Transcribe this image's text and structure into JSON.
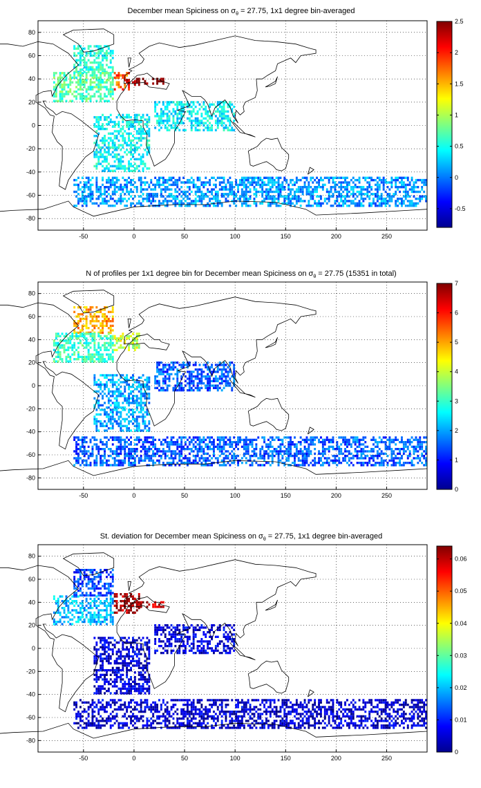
{
  "chart_data": [
    {
      "type": "heatmap",
      "title_pre": "December mean Spiciness on ",
      "title_sym": "σ",
      "title_sub": "θ",
      "title_post": " = 27.75, 1x1 degree bin-averaged",
      "xticks": [
        "-50",
        "0",
        "50",
        "100",
        "150",
        "200",
        "250"
      ],
      "yticks": [
        "80",
        "60",
        "40",
        "20",
        "0",
        "-20",
        "-40",
        "-60",
        "-80"
      ],
      "xlim": [
        -95,
        290
      ],
      "ylim": [
        -90,
        90
      ],
      "grid": true,
      "colormap": "jet",
      "clim": [
        -0.8,
        2.5
      ],
      "cbticks": [
        "2.5",
        "2",
        "1.5",
        "1",
        "0.5",
        "0",
        "-0.5"
      ],
      "cbtick_values": [
        2.5,
        2,
        1.5,
        1,
        0.5,
        0,
        -0.5
      ],
      "regions": [
        {
          "lon": [
            -60,
            -20
          ],
          "lat": [
            45,
            68
          ],
          "value": 0.55
        },
        {
          "lon": [
            -80,
            -20
          ],
          "lat": [
            20,
            45
          ],
          "value": 0.7
        },
        {
          "lon": [
            -20,
            -5
          ],
          "lat": [
            30,
            45
          ],
          "value": 1.8
        },
        {
          "lon": [
            -10,
            5
          ],
          "lat": [
            34,
            40
          ],
          "value": 2.3
        },
        {
          "lon": [
            0,
            30
          ],
          "lat": [
            35,
            40
          ],
          "value": 2.5
        },
        {
          "lon": [
            -40,
            15
          ],
          "lat": [
            -40,
            10
          ],
          "value": 0.45
        },
        {
          "lon": [
            20,
            100
          ],
          "lat": [
            -5,
            20
          ],
          "value": 0.4
        },
        {
          "lon": [
            -60,
            290
          ],
          "lat": [
            -70,
            -45
          ],
          "value": 0.1
        }
      ]
    },
    {
      "type": "heatmap",
      "title_pre": "N of profiles per 1x1 degree bin for December mean Spiciness on ",
      "title_sym": "σ",
      "title_sub": "θ",
      "title_post": " = 27.75 (15351 in total)",
      "xticks": [
        "-50",
        "0",
        "50",
        "100",
        "150",
        "200",
        "250"
      ],
      "yticks": [
        "80",
        "60",
        "40",
        "20",
        "0",
        "-20",
        "-40",
        "-60",
        "-80"
      ],
      "xlim": [
        -95,
        290
      ],
      "ylim": [
        -90,
        90
      ],
      "grid": true,
      "colormap": "jet",
      "clim": [
        0,
        7
      ],
      "cbticks": [
        "7",
        "6",
        "5",
        "4",
        "3",
        "2",
        "1",
        "0"
      ],
      "cbtick_values": [
        7,
        6,
        5,
        4,
        3,
        2,
        1,
        0
      ],
      "regions": [
        {
          "lon": [
            -60,
            -20
          ],
          "lat": [
            45,
            68
          ],
          "value": 5
        },
        {
          "lon": [
            -80,
            -20
          ],
          "lat": [
            20,
            45
          ],
          "value": 3
        },
        {
          "lon": [
            -20,
            5
          ],
          "lat": [
            30,
            45
          ],
          "value": 4
        },
        {
          "lon": [
            -40,
            15
          ],
          "lat": [
            -40,
            10
          ],
          "value": 2
        },
        {
          "lon": [
            20,
            100
          ],
          "lat": [
            -5,
            20
          ],
          "value": 1.5
        },
        {
          "lon": [
            -60,
            290
          ],
          "lat": [
            -70,
            -45
          ],
          "value": 1.5
        }
      ]
    },
    {
      "type": "heatmap",
      "title_pre": "St. deviation for December mean Spiciness on ",
      "title_sym": "σ",
      "title_sub": "θ",
      "title_post": " = 27.75, 1x1 degree bin-averaged",
      "xticks": [
        "-50",
        "0",
        "50",
        "100",
        "150",
        "200",
        "250"
      ],
      "yticks": [
        "80",
        "60",
        "40",
        "20",
        "0",
        "-20",
        "-40",
        "-60",
        "-80"
      ],
      "xlim": [
        -95,
        290
      ],
      "ylim": [
        -90,
        90
      ],
      "grid": true,
      "colormap": "jet",
      "clim": [
        0,
        0.064
      ],
      "cbticks": [
        "0.06",
        "0.05",
        "0.04",
        "0.03",
        "0.02",
        "0.01",
        "0"
      ],
      "cbtick_values": [
        0.06,
        0.05,
        0.04,
        0.03,
        0.02,
        0.01,
        0
      ],
      "regions": [
        {
          "lon": [
            -60,
            -20
          ],
          "lat": [
            45,
            68
          ],
          "value": 0.012
        },
        {
          "lon": [
            -80,
            -20
          ],
          "lat": [
            20,
            45
          ],
          "value": 0.02
        },
        {
          "lon": [
            -20,
            5
          ],
          "lat": [
            30,
            48
          ],
          "value": 0.062
        },
        {
          "lon": [
            0,
            30
          ],
          "lat": [
            35,
            40
          ],
          "value": 0.06
        },
        {
          "lon": [
            -40,
            15
          ],
          "lat": [
            -40,
            10
          ],
          "value": 0.006
        },
        {
          "lon": [
            20,
            100
          ],
          "lat": [
            -5,
            20
          ],
          "value": 0.006
        },
        {
          "lon": [
            -60,
            290
          ],
          "lat": [
            -70,
            -45
          ],
          "value": 0.005
        }
      ]
    }
  ]
}
